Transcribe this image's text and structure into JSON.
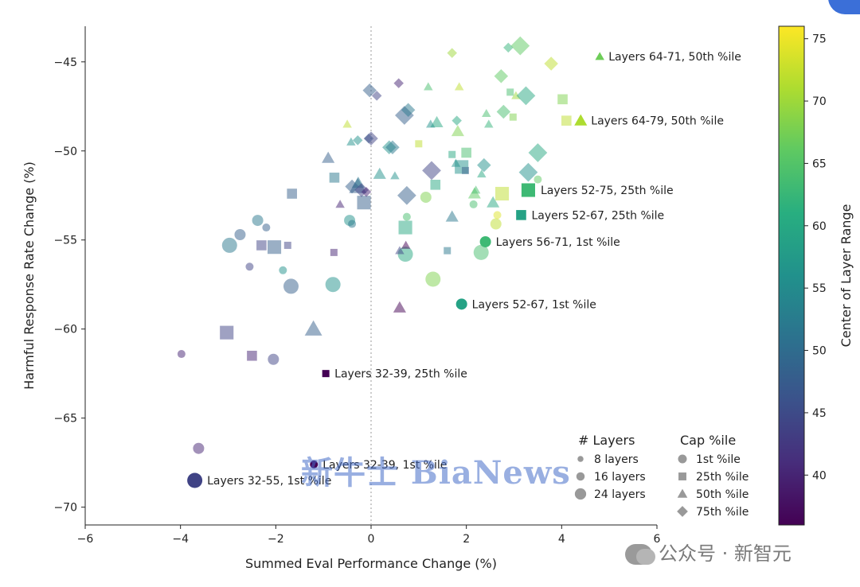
{
  "chart_data": {
    "type": "scatter",
    "xlabel": "Summed Eval Performance Change (%)",
    "ylabel": "Harmful Response Rate Change (%)",
    "xlim": [
      -6,
      6
    ],
    "ylim": [
      -71,
      -43
    ],
    "xticks": [
      "−6",
      "−4",
      "−2",
      "0",
      "2",
      "4",
      "6"
    ],
    "xtick_values": [
      -6,
      -4,
      -2,
      0,
      2,
      4,
      6
    ],
    "yticks": [
      "−45",
      "−50",
      "−55",
      "−60",
      "−65",
      "−70"
    ],
    "ytick_values": [
      -45,
      -50,
      -55,
      -60,
      -65,
      -70
    ],
    "zero_line": "dotted vertical at x = 0",
    "colorbar": {
      "label": "Center of Layer Range",
      "range": [
        36,
        76
      ],
      "ticks": [
        "40",
        "45",
        "50",
        "55",
        "60",
        "65",
        "70",
        "75"
      ],
      "tick_values": [
        40,
        45,
        50,
        55,
        60,
        65,
        70,
        75
      ],
      "colormap": "viridis"
    },
    "legend_layers": {
      "title": "# Layers",
      "entries": [
        {
          "label": "8 layers",
          "size": 8
        },
        {
          "label": "16 layers",
          "size": 16
        },
        {
          "label": "24 layers",
          "size": 24
        }
      ]
    },
    "legend_cap": {
      "title": "Cap %ile",
      "entries": [
        {
          "label": "1st %ile",
          "marker": "circle"
        },
        {
          "label": "25th %ile",
          "marker": "square"
        },
        {
          "label": "50th %ile",
          "marker": "triangle"
        },
        {
          "label": "75th %ile",
          "marker": "diamond"
        }
      ]
    },
    "highlighted": [
      {
        "label": "Layers 64-71, 50th %ile",
        "x": 4.8,
        "y": -44.7,
        "marker": "triangle",
        "size": 8,
        "c": 67
      },
      {
        "label": "Layers 64-79, 50th %ile",
        "x": 4.4,
        "y": -48.3,
        "marker": "triangle",
        "size": 16,
        "c": 71
      },
      {
        "label": "Layers 52-75, 25th %ile",
        "x": 3.3,
        "y": -52.2,
        "marker": "square",
        "size": 24,
        "c": 63
      },
      {
        "label": "Layers 52-67, 25th %ile",
        "x": 3.15,
        "y": -53.6,
        "marker": "square",
        "size": 16,
        "c": 59
      },
      {
        "label": "Layers 56-71, 1st %ile",
        "x": 2.4,
        "y": -55.1,
        "marker": "circle",
        "size": 16,
        "c": 63
      },
      {
        "label": "Layers 52-67, 1st %ile",
        "x": 1.9,
        "y": -58.6,
        "marker": "circle",
        "size": 16,
        "c": 59
      },
      {
        "label": "Layers 32-39, 25th %ile",
        "x": -0.95,
        "y": -62.5,
        "marker": "square",
        "size": 8,
        "c": 36
      },
      {
        "label": "Layers 32-39, 1st %ile",
        "x": -1.2,
        "y": -67.6,
        "marker": "circle",
        "size": 8,
        "c": 36
      },
      {
        "label": "Layers 32-55, 1st %ile",
        "x": -3.7,
        "y": -68.5,
        "marker": "circle",
        "size": 24,
        "c": 44
      }
    ],
    "background_points": [
      [
        -3.98,
        -61.4,
        "circle",
        8,
        40
      ],
      [
        -3.62,
        -66.7,
        "circle",
        16,
        40
      ],
      [
        -2.97,
        -55.3,
        "circle",
        24,
        52
      ],
      [
        -2.75,
        -54.7,
        "circle",
        16,
        48
      ],
      [
        -2.55,
        -56.5,
        "circle",
        8,
        44
      ],
      [
        -2.38,
        -53.9,
        "circle",
        16,
        52
      ],
      [
        -2.2,
        -54.3,
        "circle",
        8,
        48
      ],
      [
        -2.05,
        -61.7,
        "circle",
        16,
        44
      ],
      [
        -1.85,
        -56.7,
        "circle",
        8,
        56
      ],
      [
        -1.68,
        -57.6,
        "circle",
        24,
        48
      ],
      [
        -0.8,
        -57.5,
        "circle",
        24,
        56
      ],
      [
        -0.45,
        -53.9,
        "circle",
        16,
        56
      ],
      [
        -0.4,
        -54.1,
        "circle",
        8,
        52
      ],
      [
        1.15,
        -52.6,
        "circle",
        16,
        68
      ],
      [
        1.3,
        -57.2,
        "circle",
        24,
        68
      ],
      [
        0.75,
        -53.7,
        "circle",
        8,
        64
      ],
      [
        0.72,
        -55.8,
        "circle",
        24,
        60
      ],
      [
        2.15,
        -53.0,
        "circle",
        8,
        64
      ],
      [
        2.62,
        -54.1,
        "circle",
        16,
        72
      ],
      [
        2.65,
        -53.6,
        "circle",
        8,
        74
      ],
      [
        2.31,
        -55.7,
        "circle",
        24,
        64
      ],
      [
        3.5,
        -51.6,
        "circle",
        8,
        66
      ],
      [
        -3.03,
        -60.2,
        "square",
        24,
        44
      ],
      [
        -2.5,
        -61.5,
        "square",
        16,
        40
      ],
      [
        -2.3,
        -55.3,
        "square",
        16,
        44
      ],
      [
        -2.03,
        -55.4,
        "square",
        24,
        48
      ],
      [
        -1.75,
        -55.3,
        "square",
        8,
        44
      ],
      [
        -1.66,
        -52.4,
        "square",
        16,
        48
      ],
      [
        -0.78,
        -55.7,
        "square",
        8,
        40
      ],
      [
        -0.77,
        -51.5,
        "square",
        16,
        52
      ],
      [
        -0.15,
        -52.9,
        "square",
        24,
        48
      ],
      [
        0.72,
        -54.3,
        "square",
        24,
        60
      ],
      [
        1.0,
        -49.6,
        "square",
        8,
        72
      ],
      [
        1.35,
        -51.9,
        "square",
        16,
        60
      ],
      [
        1.6,
        -55.6,
        "square",
        8,
        52
      ],
      [
        1.7,
        -50.2,
        "square",
        8,
        60
      ],
      [
        1.9,
        -50.9,
        "square",
        24,
        56
      ],
      [
        1.98,
        -51.1,
        "square",
        8,
        48
      ],
      [
        2.0,
        -50.1,
        "square",
        16,
        64
      ],
      [
        2.75,
        -52.4,
        "square",
        24,
        72
      ],
      [
        2.92,
        -46.7,
        "square",
        8,
        64
      ],
      [
        2.98,
        -48.1,
        "square",
        8,
        68
      ],
      [
        4.02,
        -47.1,
        "square",
        16,
        68
      ],
      [
        4.1,
        -48.3,
        "square",
        16,
        72
      ],
      [
        -1.21,
        -60.0,
        "triangle",
        24,
        48
      ],
      [
        -0.9,
        -50.4,
        "triangle",
        16,
        48
      ],
      [
        -0.65,
        -53.0,
        "triangle",
        8,
        40
      ],
      [
        -0.5,
        -48.5,
        "triangle",
        8,
        72
      ],
      [
        -0.42,
        -49.5,
        "triangle",
        8,
        56
      ],
      [
        -0.28,
        -52.0,
        "triangle",
        24,
        48
      ],
      [
        -0.27,
        -51.8,
        "triangle",
        16,
        52
      ],
      [
        0.18,
        -51.3,
        "triangle",
        16,
        56
      ],
      [
        0.5,
        -51.4,
        "triangle",
        8,
        56
      ],
      [
        0.6,
        -58.8,
        "triangle",
        16,
        36
      ],
      [
        0.6,
        -55.6,
        "triangle",
        8,
        44
      ],
      [
        0.73,
        -55.3,
        "triangle",
        8,
        36
      ],
      [
        1.2,
        -46.4,
        "triangle",
        8,
        64
      ],
      [
        1.38,
        -48.4,
        "triangle",
        16,
        60
      ],
      [
        1.25,
        -48.5,
        "triangle",
        8,
        56
      ],
      [
        1.7,
        -53.7,
        "triangle",
        16,
        52
      ],
      [
        1.78,
        -50.7,
        "triangle",
        8,
        56
      ],
      [
        1.82,
        -48.9,
        "triangle",
        16,
        68
      ],
      [
        1.85,
        -46.4,
        "triangle",
        8,
        72
      ],
      [
        2.17,
        -52.4,
        "triangle",
        16,
        66
      ],
      [
        2.2,
        -52.2,
        "triangle",
        8,
        64
      ],
      [
        2.32,
        -51.3,
        "triangle",
        8,
        60
      ],
      [
        2.42,
        -47.9,
        "triangle",
        8,
        64
      ],
      [
        2.47,
        -48.5,
        "triangle",
        8,
        62
      ],
      [
        2.56,
        -52.9,
        "triangle",
        16,
        60
      ],
      [
        3.04,
        -46.9,
        "triangle",
        8,
        70
      ],
      [
        -0.4,
        -52.0,
        "diamond",
        16,
        48
      ],
      [
        -0.2,
        -52.2,
        "diamond",
        16,
        44
      ],
      [
        -0.1,
        -52.3,
        "diamond",
        8,
        40
      ],
      [
        -0.28,
        -49.4,
        "diamond",
        8,
        56
      ],
      [
        -0.05,
        -49.3,
        "diamond",
        8,
        48
      ],
      [
        0.0,
        -49.3,
        "diamond",
        16,
        44
      ],
      [
        -0.03,
        -46.6,
        "diamond",
        16,
        48
      ],
      [
        0.12,
        -46.9,
        "diamond",
        8,
        44
      ],
      [
        0.38,
        -49.8,
        "diamond",
        16,
        56
      ],
      [
        0.45,
        -49.8,
        "diamond",
        16,
        52
      ],
      [
        0.58,
        -46.2,
        "diamond",
        8,
        40
      ],
      [
        0.7,
        -48.0,
        "diamond",
        24,
        48
      ],
      [
        0.78,
        -47.7,
        "diamond",
        16,
        52
      ],
      [
        0.75,
        -52.5,
        "diamond",
        24,
        48
      ],
      [
        1.27,
        -51.1,
        "diamond",
        24,
        44
      ],
      [
        1.7,
        -44.5,
        "diamond",
        8,
        70
      ],
      [
        1.8,
        -48.3,
        "diamond",
        8,
        60
      ],
      [
        2.37,
        -50.8,
        "diamond",
        16,
        56
      ],
      [
        2.73,
        -45.8,
        "diamond",
        16,
        66
      ],
      [
        2.78,
        -47.8,
        "diamond",
        16,
        64
      ],
      [
        2.88,
        -44.2,
        "diamond",
        8,
        62
      ],
      [
        3.13,
        -44.1,
        "diamond",
        24,
        66
      ],
      [
        3.25,
        -46.9,
        "diamond",
        24,
        60
      ],
      [
        3.3,
        -51.2,
        "diamond",
        24,
        56
      ],
      [
        3.5,
        -50.1,
        "diamond",
        24,
        60
      ],
      [
        3.78,
        -45.1,
        "diamond",
        16,
        72
      ]
    ],
    "grid": false,
    "legend_placement": "bottom-right"
  },
  "watermark_center": "新牛士 BiaNews",
  "watermark_corner": "公众号 · 新智元"
}
